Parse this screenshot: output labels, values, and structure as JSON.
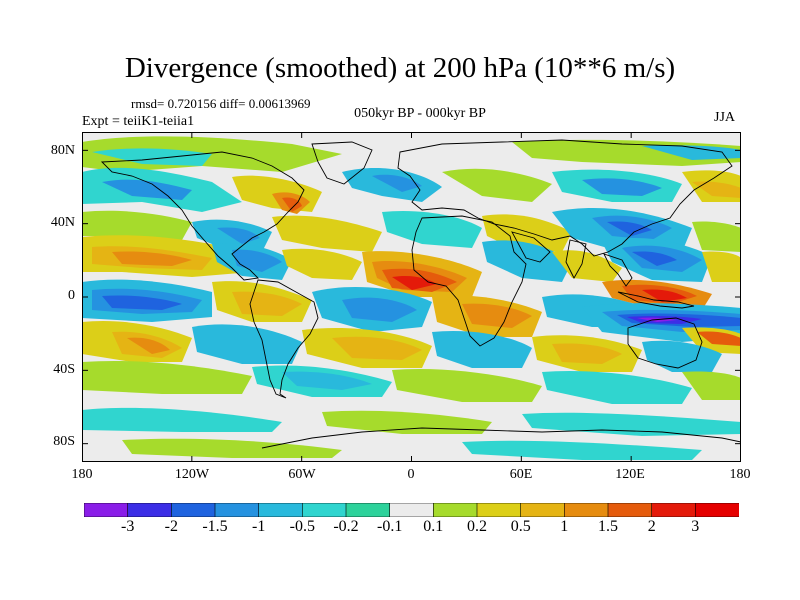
{
  "title": "Divergence (smoothed) at 200 hPa (10**6 m/s)",
  "stats": "rmsd= 0.720156 diff= 0.00613969",
  "expt": "Expt = teiiK1-teiia1",
  "period": "050kyr BP - 000kyr BP",
  "season": "JJA",
  "y_ticks": [
    "80N",
    "40N",
    "0",
    "40S",
    "80S"
  ],
  "x_ticks": [
    "180",
    "120W",
    "60W",
    "0",
    "60E",
    "120E",
    "180"
  ],
  "colorbar": {
    "labels": [
      "-3",
      "-2",
      "-1.5",
      "-1",
      "-0.5",
      "-0.2",
      "-0.1",
      "0.1",
      "0.2",
      "0.5",
      "1",
      "1.5",
      "2",
      "3"
    ],
    "colors": [
      "#8a1de8",
      "#3c2ee6",
      "#1f63df",
      "#2592e0",
      "#29b9dc",
      "#30d5cf",
      "#2dd29b",
      "#ececec",
      "#a6db2c",
      "#dccf18",
      "#e5b414",
      "#e68c10",
      "#e55b0c",
      "#e41a0a",
      "#e50000"
    ]
  },
  "colors": {
    "background": "#ececec",
    "coast": "#000000"
  }
}
